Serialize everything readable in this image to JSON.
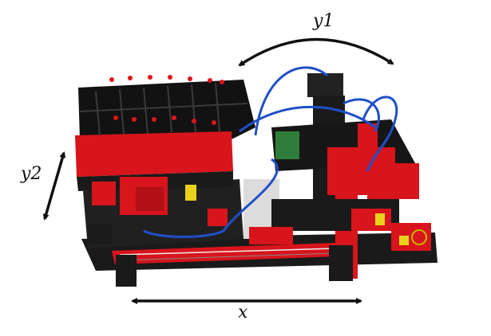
{
  "labels": {
    "y1": "y1",
    "y2": "y2",
    "x": "x"
  },
  "colors": {
    "frame_black": "#151515",
    "brick_red": "#d8141c",
    "cable_blue": "#1f4fc9",
    "board_green": "#2f7d3a",
    "accent_yellow": "#e8d21a",
    "panel_gray": "#cfcfcf"
  }
}
